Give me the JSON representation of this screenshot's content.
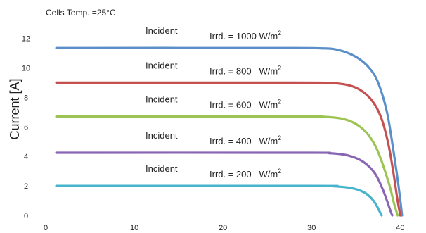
{
  "chart_data": {
    "type": "line",
    "note": "Cells Temp. =25°C",
    "ylabel": "Current [A]",
    "xlabel": "",
    "xlim": [
      0,
      41
    ],
    "ylim": [
      0,
      12.6
    ],
    "x_ticks": [
      "0",
      "10",
      "20",
      "30",
      "40"
    ],
    "x_tick_values": [
      0,
      10,
      20,
      30,
      40
    ],
    "y_ticks": [
      "0",
      "2",
      "4",
      "6",
      "8",
      "10",
      "12"
    ],
    "y_tick_values": [
      0,
      2,
      4,
      6,
      8,
      10,
      12
    ],
    "grid": false,
    "series": [
      {
        "color": "#5b8fc9",
        "label_line1": "Incident",
        "label_line2": "Irrd. = 1000 W/m",
        "label_sup": "2",
        "points": [
          [
            1.2,
            11.35
          ],
          [
            26,
            11.35
          ],
          [
            31,
            11.33
          ],
          [
            33,
            11.22
          ],
          [
            35,
            10.75
          ],
          [
            36.5,
            10.0
          ],
          [
            37.5,
            9.0
          ],
          [
            38.5,
            7.0
          ],
          [
            39.2,
            4.5
          ],
          [
            39.8,
            2.0
          ],
          [
            40.2,
            0.0
          ]
        ]
      },
      {
        "color": "#c64f4f",
        "label_line1": "Incident",
        "label_line2": "Irrd. = 800   W/m",
        "label_sup": "2",
        "points": [
          [
            1.2,
            9.0
          ],
          [
            28,
            9.0
          ],
          [
            32,
            8.98
          ],
          [
            34,
            8.85
          ],
          [
            35.5,
            8.5
          ],
          [
            36.8,
            7.8
          ],
          [
            37.8,
            6.7
          ],
          [
            38.6,
            5.0
          ],
          [
            39.2,
            3.0
          ],
          [
            39.7,
            1.0
          ],
          [
            40.0,
            0.0
          ]
        ]
      },
      {
        "color": "#9cc455",
        "label_line1": "Incident",
        "label_line2": "Irrd. = 600   W/m",
        "label_sup": "2",
        "points": [
          [
            1.2,
            6.7
          ],
          [
            28,
            6.7
          ],
          [
            31.5,
            6.68
          ],
          [
            33.5,
            6.55
          ],
          [
            35,
            6.2
          ],
          [
            36.2,
            5.6
          ],
          [
            37.2,
            4.7
          ],
          [
            38,
            3.5
          ],
          [
            38.8,
            2.0
          ],
          [
            39.3,
            0.8
          ],
          [
            39.7,
            0.0
          ]
        ]
      },
      {
        "color": "#8866b3",
        "label_line1": "Incident",
        "label_line2": "Irrd. = 400   W/m",
        "label_sup": "2",
        "points": [
          [
            1.2,
            4.25
          ],
          [
            29,
            4.25
          ],
          [
            32,
            4.22
          ],
          [
            34,
            4.08
          ],
          [
            35.5,
            3.75
          ],
          [
            36.5,
            3.3
          ],
          [
            37.3,
            2.7
          ],
          [
            38,
            1.8
          ],
          [
            38.5,
            1.0
          ],
          [
            38.9,
            0.3
          ],
          [
            39.1,
            0.0
          ]
        ]
      },
      {
        "color": "#46b4cc",
        "label_line1": "Incident",
        "label_line2": "Irrd. = 200   W/m",
        "label_sup": "2",
        "points": [
          [
            1.2,
            2.0
          ],
          [
            30,
            2.0
          ],
          [
            32.5,
            1.97
          ],
          [
            34.5,
            1.85
          ],
          [
            35.8,
            1.6
          ],
          [
            36.6,
            1.25
          ],
          [
            37.2,
            0.8
          ],
          [
            37.6,
            0.35
          ],
          [
            37.9,
            0.0
          ]
        ]
      }
    ]
  }
}
